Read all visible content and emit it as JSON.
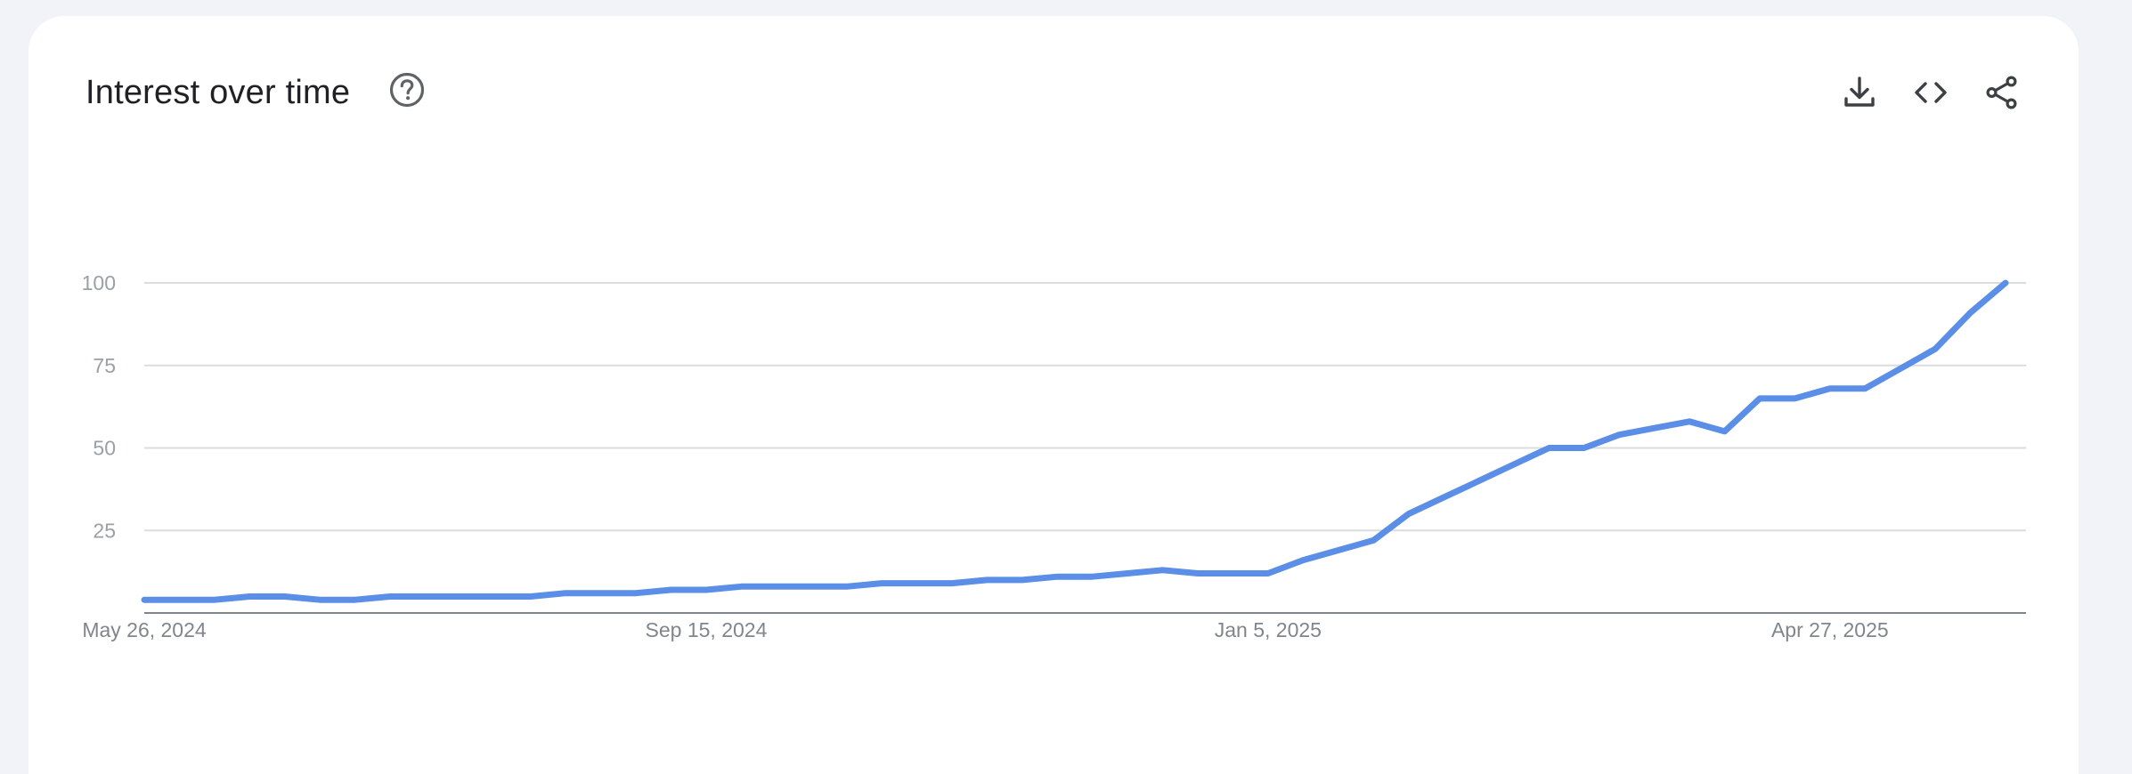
{
  "header": {
    "title": "Interest over time",
    "help_icon": "help-circle-icon",
    "actions": [
      {
        "name": "download-button",
        "icon": "download-icon"
      },
      {
        "name": "embed-button",
        "icon": "code-icon"
      },
      {
        "name": "share-button",
        "icon": "share-icon"
      }
    ]
  },
  "colors": {
    "series": "#5b8ee6",
    "grid": "#dadce0",
    "axis": "#80868b",
    "background": "#f1f3f8",
    "card": "#ffffff"
  },
  "chart_data": {
    "type": "line",
    "title": "Interest over time",
    "xlabel": "",
    "ylabel": "",
    "ylim": [
      0,
      100
    ],
    "yticks": [
      25,
      50,
      75,
      100
    ],
    "xtick_labels": [
      "May 26, 2024",
      "Sep 15, 2024",
      "Jan 5, 2025",
      "Apr 27, 2025"
    ],
    "xtick_indices": [
      0,
      16,
      32,
      48
    ],
    "grid": true,
    "series": [
      {
        "values": [
          4,
          4,
          4,
          5,
          5,
          4,
          4,
          5,
          5,
          5,
          5,
          5,
          6,
          6,
          6,
          7,
          7,
          8,
          8,
          8,
          8,
          9,
          9,
          9,
          10,
          10,
          11,
          11,
          12,
          13,
          12,
          12,
          12,
          16,
          19,
          22,
          30,
          35,
          40,
          45,
          50,
          50,
          54,
          56,
          58,
          55,
          65,
          65,
          68,
          68,
          74,
          80,
          91,
          100
        ]
      }
    ]
  }
}
